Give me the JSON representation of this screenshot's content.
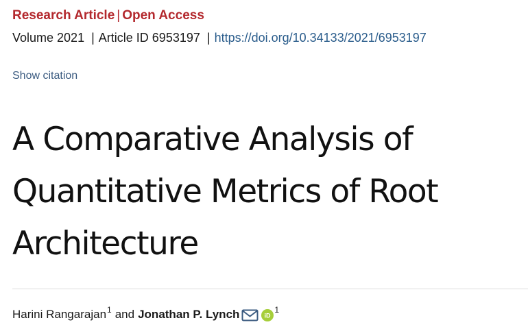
{
  "article": {
    "type_label": "Research Article",
    "separator": "|",
    "access_label": "Open Access",
    "volume": "Volume 2021",
    "article_id": "Article ID 6953197",
    "doi_url": "https://doi.org/10.34133/2021/6953197",
    "show_citation_label": "Show citation",
    "title": "A Comparative Analysis of Quantitative Metrics of Root Architecture"
  },
  "authors": {
    "author1_name": "Harini Rangarajan",
    "author1_affiliation": "1",
    "conjunction": "and",
    "author2_name": "Jonathan P. Lynch",
    "author2_affiliation": "1",
    "icons": [
      "mail-icon",
      "orcid-icon"
    ]
  },
  "colors": {
    "article_type": "#b3282d",
    "link": "#2b5d8c",
    "show_citation": "#3b5b80",
    "orcid": "#a6ce39"
  }
}
